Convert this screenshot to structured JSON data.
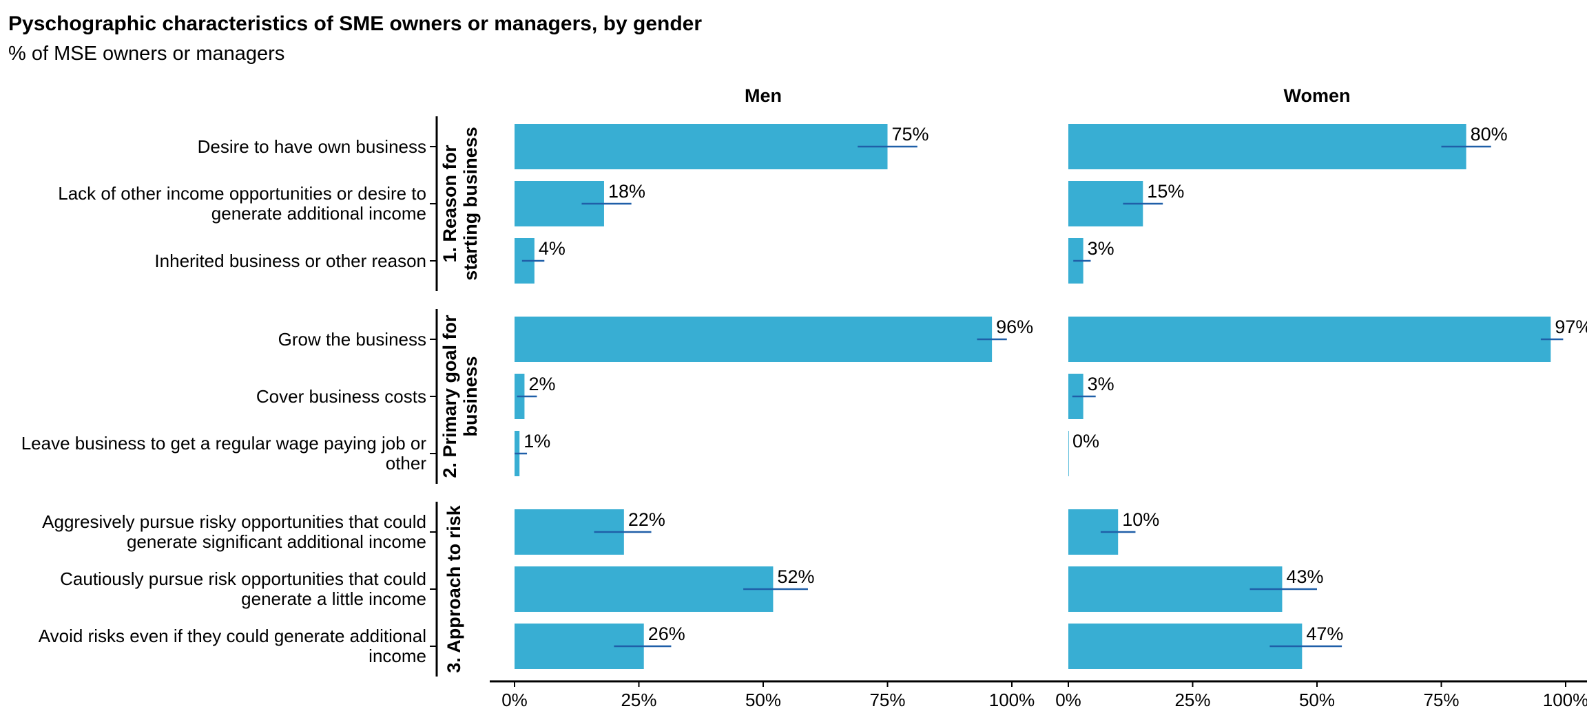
{
  "chart_data": {
    "type": "bar",
    "orientation": "horizontal",
    "title": "Pyschographic characteristics of SME owners or managers, by gender",
    "subtitle": "% of MSE owners or managers",
    "panels": [
      "Men",
      "Women"
    ],
    "xlim": [
      0,
      100
    ],
    "x_ticks": [
      "0%",
      "25%",
      "50%",
      "75%",
      "100%"
    ],
    "groups": [
      {
        "label": "1. Reason for starting business",
        "label_lines": [
          "1. Reason for",
          "starting business"
        ],
        "rows": [
          {
            "label": "Desire to have own business",
            "label_lines": [
              "Desire to have own business"
            ],
            "men": 75,
            "women": 80,
            "men_ci": [
              69,
              81
            ],
            "women_ci": [
              75,
              85
            ]
          },
          {
            "label": "Lack of other income opportunities or desire to generate additional income",
            "label_lines": [
              "Lack of other income opportunities or desire to",
              "generate additional income"
            ],
            "men": 18,
            "women": 15,
            "men_ci": [
              13.5,
              23.5
            ],
            "women_ci": [
              11,
              19
            ]
          },
          {
            "label": "Inherited business or other reason",
            "label_lines": [
              "Inherited business or other reason"
            ],
            "men": 4,
            "women": 3,
            "men_ci": [
              1.5,
              6
            ],
            "women_ci": [
              1,
              4.5
            ]
          }
        ]
      },
      {
        "label": "2. Primary goal for business",
        "label_lines": [
          "2. Primary goal for",
          "business"
        ],
        "rows": [
          {
            "label": "Grow the business",
            "label_lines": [
              "Grow the business"
            ],
            "men": 96,
            "women": 97,
            "men_ci": [
              93,
              99
            ],
            "women_ci": [
              95,
              99.5
            ]
          },
          {
            "label": "Cover business costs",
            "label_lines": [
              "Cover business costs"
            ],
            "men": 2,
            "women": 3,
            "men_ci": [
              0.5,
              4.5
            ],
            "women_ci": [
              0.8,
              5.5
            ]
          },
          {
            "label": "Leave business to get a regular wage paying job or other",
            "label_lines": [
              "Leave business to get a regular wage paying job or",
              "other"
            ],
            "men": 1,
            "women": 0,
            "men_ci": [
              0,
              2.5
            ],
            "women_ci": [
              0,
              0
            ]
          }
        ]
      },
      {
        "label": "3. Approach to risk",
        "label_lines": [
          "3. Approach to risk"
        ],
        "rows": [
          {
            "label": "Aggresively pursue risky opportunities that could generate significant additional income",
            "label_lines": [
              "Aggresively pursue risky opportunities that could",
              "generate significant additional income"
            ],
            "men": 22,
            "women": 10,
            "men_ci": [
              16,
              27.5
            ],
            "women_ci": [
              6.5,
              13.5
            ]
          },
          {
            "label": "Cautiously pursue risk opportunities that could generate a little income",
            "label_lines": [
              "Cautiously pursue risk opportunities that could",
              "generate a little income"
            ],
            "men": 52,
            "women": 43,
            "men_ci": [
              46,
              59
            ],
            "women_ci": [
              36.5,
              50
            ]
          },
          {
            "label": "Avoid risks even if they could generate additional income",
            "label_lines": [
              "Avoid risks even if they could generate additional",
              "income"
            ],
            "men": 26,
            "women": 47,
            "men_ci": [
              20,
              31.5
            ],
            "women_ci": [
              40.5,
              55
            ]
          }
        ]
      }
    ],
    "colors": {
      "bar": "#38AED3",
      "error_bar": "#1F5FA8",
      "axis": "#000000"
    },
    "grid": false,
    "legend": "none"
  }
}
